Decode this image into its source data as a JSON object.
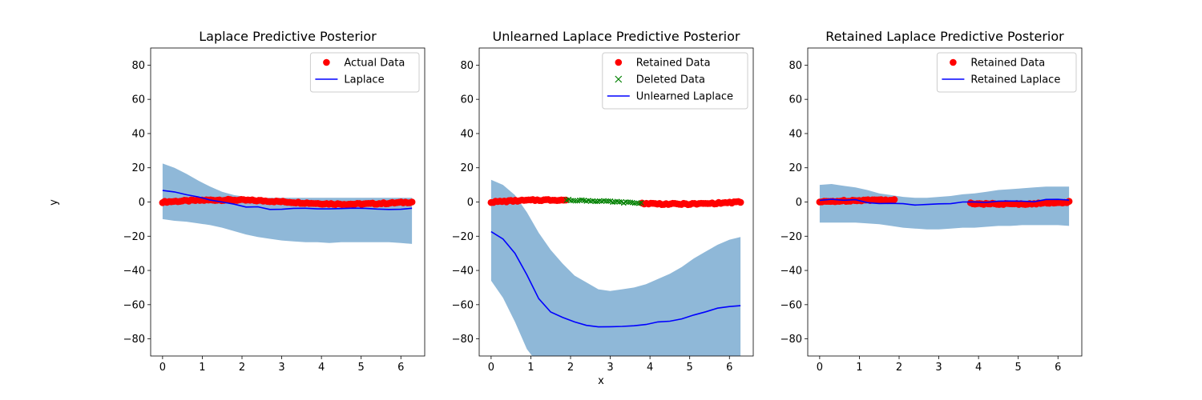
{
  "figure": {
    "xlabel": "x",
    "ylabel": "y"
  },
  "colors": {
    "data": "#ff0000",
    "deleted": "#008000",
    "line": "#0000ff",
    "band": "#8fb8d8"
  },
  "chart_data": [
    {
      "type": "line",
      "title": "Laplace Predictive Posterior",
      "xlim": [
        -0.3,
        6.6
      ],
      "ylim": [
        -90,
        90
      ],
      "xticks": [
        0,
        1,
        2,
        3,
        4,
        5,
        6
      ],
      "yticks": [
        -80,
        -60,
        -40,
        -20,
        0,
        20,
        40,
        60,
        80
      ],
      "legend_position": "top-right",
      "legend": [
        "Actual Data",
        "Laplace"
      ],
      "scatter": [
        {
          "name": "Actual Data",
          "marker": "o",
          "x_range": [
            0,
            6.28
          ],
          "segments": []
        }
      ],
      "mean_line": {
        "name": "Laplace",
        "x": [
          0,
          0.3,
          0.6,
          0.9,
          1.2,
          1.5,
          1.8,
          2.1,
          2.4,
          2.7,
          3.0,
          3.3,
          3.6,
          3.9,
          4.2,
          4.5,
          4.8,
          5.1,
          5.4,
          5.7,
          6.0,
          6.28
        ],
        "y": [
          7,
          6,
          4.5,
          2.5,
          1,
          -0.5,
          -1.5,
          -2.5,
          -3.2,
          -3.8,
          -4,
          -4,
          -3.8,
          -3.6,
          -3.5,
          -3.5,
          -3.6,
          -3.6,
          -3.7,
          -3.8,
          -3.8,
          -3.8
        ]
      },
      "band": {
        "upper": [
          22.5,
          20,
          16.5,
          12.5,
          9,
          6,
          4,
          3,
          2.5,
          2.5,
          2.5,
          2.5,
          2.5,
          2.5,
          2.5,
          2.5,
          2.5,
          2.5,
          2.5,
          2.5,
          2.5,
          2.5
        ],
        "lower": [
          -10,
          -11,
          -11.5,
          -12.5,
          -13.5,
          -15,
          -17,
          -19,
          -20.5,
          -21.5,
          -22.5,
          -23,
          -23.5,
          -23.5,
          -24,
          -23.5,
          -23.5,
          -23.5,
          -23.5,
          -23.5,
          -24,
          -24.5
        ]
      }
    },
    {
      "type": "line",
      "title": "Unlearned Laplace Predictive Posterior",
      "xlim": [
        -0.3,
        6.6
      ],
      "ylim": [
        -90,
        90
      ],
      "xticks": [
        0,
        1,
        2,
        3,
        4,
        5,
        6
      ],
      "yticks": [
        -80,
        -60,
        -40,
        -20,
        0,
        20,
        40,
        60,
        80
      ],
      "legend_position": "top-right",
      "legend": [
        "Retained Data",
        "Deleted Data",
        "Unlearned Laplace"
      ],
      "scatter": [
        {
          "name": "Retained Data",
          "marker": "o",
          "x_range": [
            0,
            1.88
          ],
          "segments": [
            [
              3.8,
              6.28
            ]
          ]
        },
        {
          "name": "Deleted Data",
          "marker": "x",
          "x_range": [
            1.9,
            3.78
          ],
          "segments": []
        }
      ],
      "mean_line": {
        "name": "Unlearned Laplace",
        "x": [
          0,
          0.3,
          0.6,
          0.9,
          1.2,
          1.5,
          1.8,
          2.1,
          2.4,
          2.7,
          3.0,
          3.3,
          3.6,
          3.9,
          4.2,
          4.5,
          4.8,
          5.1,
          5.4,
          5.7,
          6.0,
          6.28
        ],
        "y": [
          -17,
          -22,
          -30,
          -42,
          -56,
          -64,
          -68,
          -70,
          -71.5,
          -73,
          -73,
          -73,
          -72.5,
          -71,
          -70,
          -69.5,
          -68,
          -66,
          -64,
          -62.5,
          -61.5,
          -60.5
        ]
      },
      "band": {
        "upper": [
          13,
          10,
          4,
          -6,
          -18,
          -28,
          -36,
          -43,
          -47,
          -51,
          -52,
          -51,
          -50,
          -48,
          -45,
          -42,
          -38,
          -33,
          -29,
          -25,
          -22,
          -20.5
        ],
        "lower": [
          -46,
          -56,
          -70,
          -86,
          -95,
          -95,
          -95,
          -95,
          -95,
          -95,
          -95,
          -95,
          -95,
          -95,
          -95,
          -95,
          -95,
          -95,
          -95,
          -95,
          -95,
          -95
        ]
      }
    },
    {
      "type": "line",
      "title": "Retained Laplace Predictive Posterior",
      "xlim": [
        -0.3,
        6.6
      ],
      "ylim": [
        -90,
        90
      ],
      "xticks": [
        0,
        1,
        2,
        3,
        4,
        5,
        6
      ],
      "yticks": [
        -80,
        -60,
        -40,
        -20,
        0,
        20,
        40,
        60,
        80
      ],
      "legend_position": "top-right",
      "legend": [
        "Retained Data",
        "Retained Laplace"
      ],
      "scatter": [
        {
          "name": "Retained Data",
          "marker": "o",
          "x_range": [
            0,
            1.88
          ],
          "segments": [
            [
              3.8,
              6.28
            ]
          ]
        }
      ],
      "mean_line": {
        "name": "Retained Laplace",
        "x": [
          0,
          0.3,
          0.6,
          0.9,
          1.2,
          1.5,
          1.8,
          2.1,
          2.4,
          2.7,
          3.0,
          3.3,
          3.6,
          3.9,
          4.2,
          4.5,
          4.8,
          5.1,
          5.4,
          5.7,
          6.0,
          6.28
        ],
        "y": [
          1.5,
          2,
          1.5,
          1,
          0,
          -0.5,
          -1,
          -1.5,
          -2,
          -2,
          -1.5,
          -1,
          -0.5,
          0,
          0,
          0.3,
          0.5,
          0.5,
          0.7,
          1,
          1,
          1
        ],
        "y_variation_note": ""
      },
      "band": {
        "upper": [
          10,
          10.5,
          9.5,
          8.5,
          7,
          5,
          4,
          3,
          2.5,
          2.5,
          3,
          3.5,
          4.5,
          5,
          6,
          7,
          7.5,
          8,
          8.5,
          9,
          9,
          9
        ],
        "lower": [
          -12,
          -12,
          -12,
          -12,
          -12.5,
          -13,
          -14,
          -15,
          -15.5,
          -16,
          -16,
          -15.5,
          -15,
          -15,
          -14.5,
          -14,
          -14,
          -13.5,
          -13.5,
          -13.5,
          -13.5,
          -14
        ]
      }
    }
  ]
}
